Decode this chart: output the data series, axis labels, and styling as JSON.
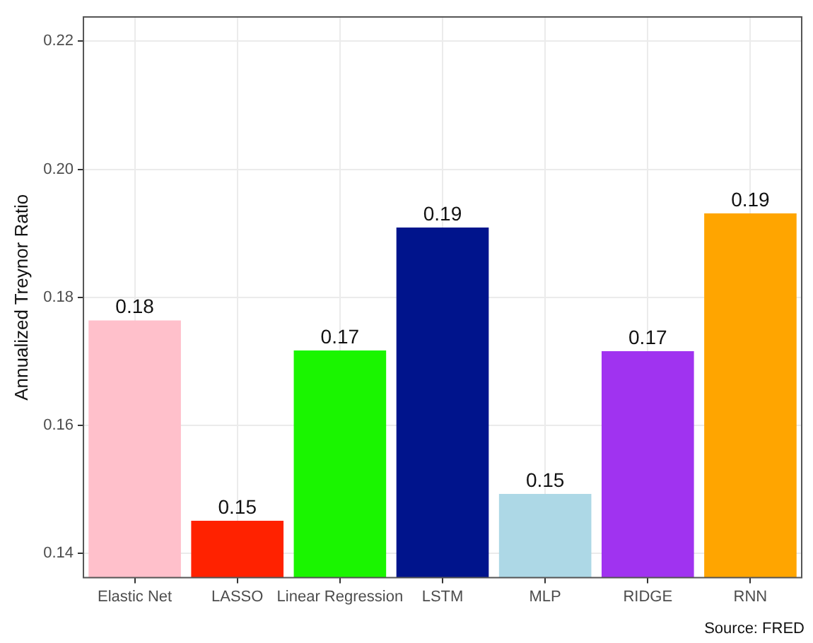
{
  "chart_data": {
    "type": "bar",
    "ylabel": "Annualized Treynor Ratio",
    "categories": [
      "Elastic Net",
      "LASSO",
      "Linear Regression",
      "LSTM",
      "MLP",
      "RIDGE",
      "RNN"
    ],
    "values": [
      0.1764,
      0.1451,
      0.1717,
      0.1909,
      0.1493,
      0.1716,
      0.1931
    ],
    "colors": [
      "#ffc0cb",
      "#ff2200",
      "#1af500",
      "#00148c",
      "#add8e6",
      "#a033f0",
      "#ffa500"
    ],
    "value_labels": [
      "0.18",
      "0.15",
      "0.17",
      "0.19",
      "0.15",
      "0.17",
      "0.19"
    ],
    "ylim": [
      0.1362,
      0.2238
    ],
    "yticks": [
      0.14,
      0.16,
      0.18,
      {
        "value": 0.2,
        "label": "0.20"
      },
      0.22
    ],
    "grid": true,
    "legend": false,
    "annotations": [
      "Source: FRED"
    ]
  }
}
